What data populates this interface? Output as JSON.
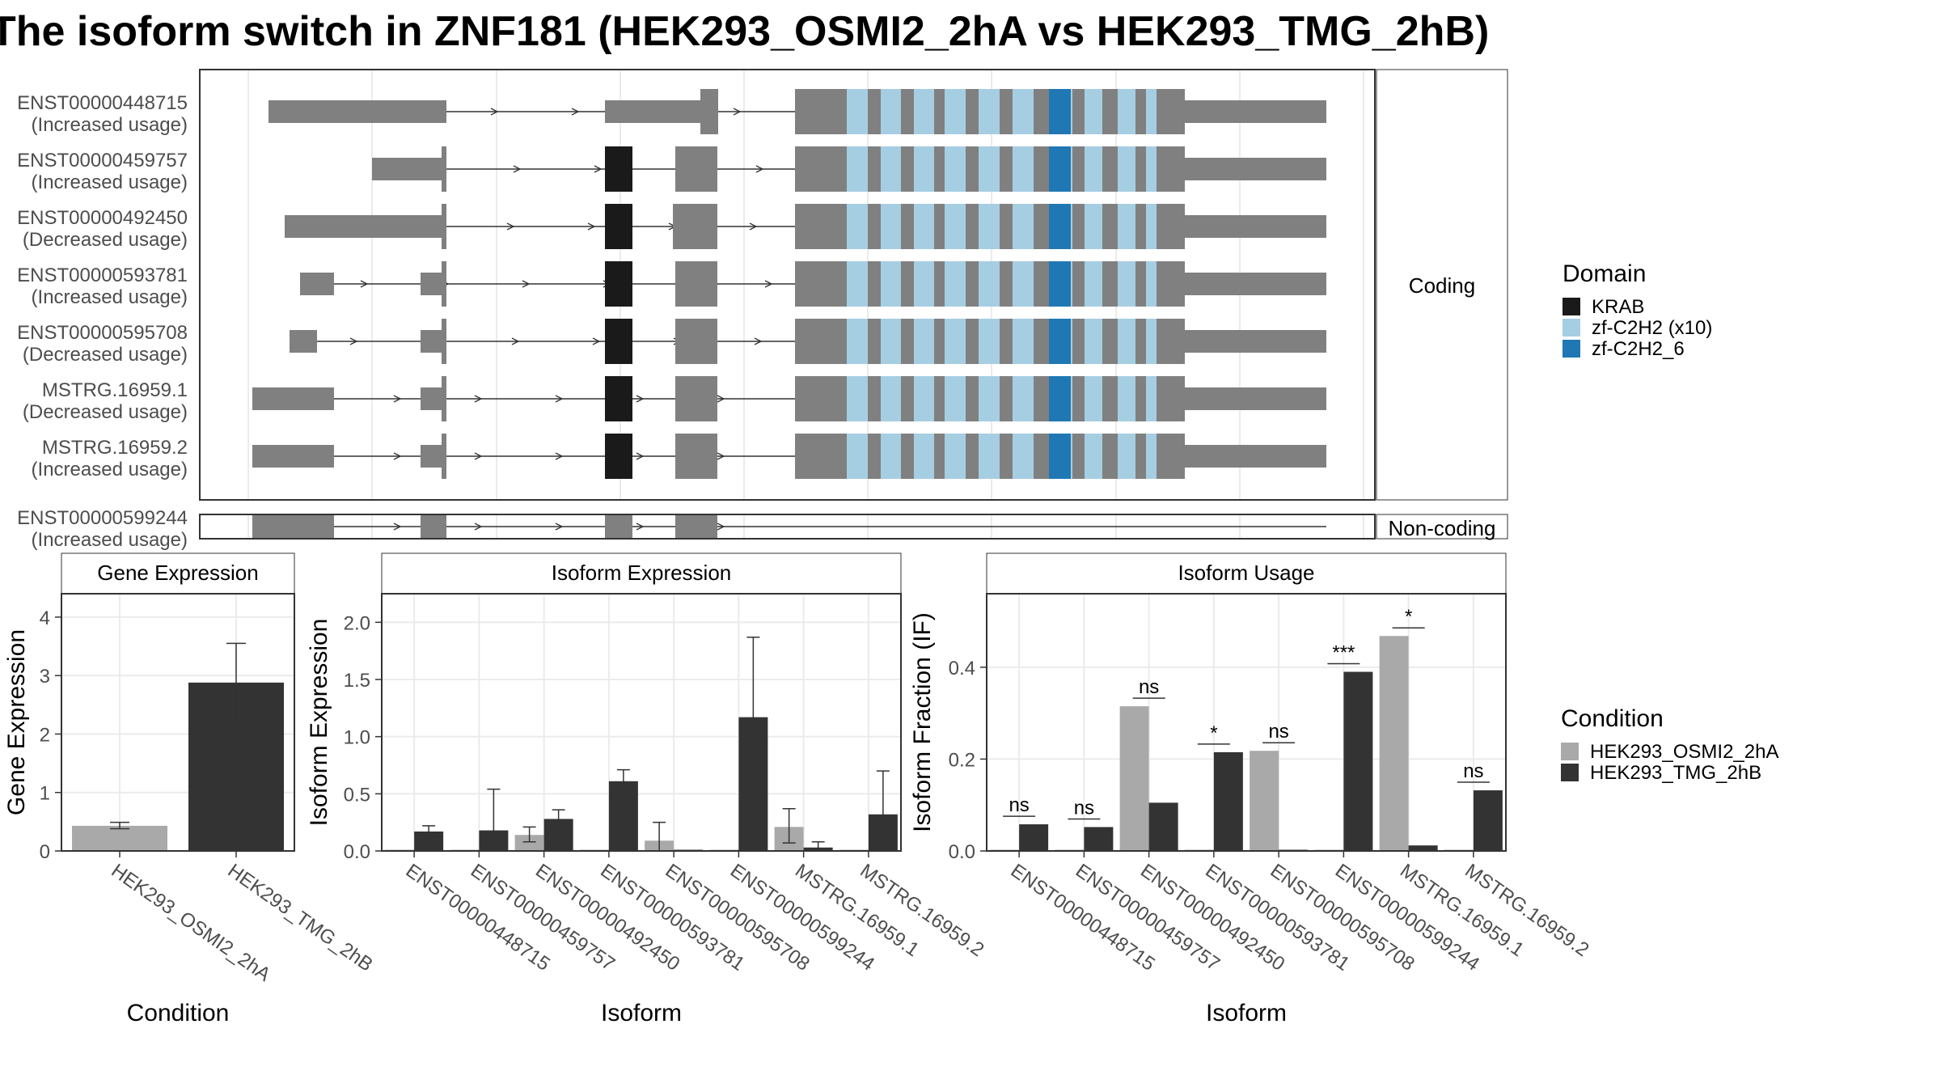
{
  "title": "The isoform switch in ZNF181 (HEK293_OSMI2_2hA vs HEK293_TMG_2hB)",
  "colors": {
    "exon": "#808080",
    "krab": "#1a1a1a",
    "zf_c2h2": "#a6cee3",
    "zf_c2h2_6": "#1f78b4",
    "cond_a": "#a9a9a9",
    "cond_b": "#333333"
  },
  "chart_data": [
    {
      "type": "gene-structure",
      "facets": [
        "Coding",
        "Non-coding"
      ],
      "transcripts": [
        {
          "id": "ENST00000448715",
          "usage": "(Increased usage)",
          "facet": "Coding",
          "coding_exons": [
            1,
            3,
            4,
            5
          ],
          "krab": false
        },
        {
          "id": "ENST00000459757",
          "usage": "(Increased usage)",
          "facet": "Coding",
          "coding_exons": [
            2,
            4,
            5
          ],
          "krab": true
        },
        {
          "id": "ENST00000492450",
          "usage": "(Decreased usage)",
          "facet": "Coding",
          "coding_exons": [
            2,
            4,
            5
          ],
          "krab": true
        },
        {
          "id": "ENST00000593781",
          "usage": "(Increased usage)",
          "facet": "Coding",
          "coding_exons": [
            2,
            4,
            5
          ],
          "krab": true
        },
        {
          "id": "ENST00000595708",
          "usage": "(Decreased usage)",
          "facet": "Coding",
          "coding_exons": [
            2,
            4,
            5
          ],
          "krab": true
        },
        {
          "id": "MSTRG.16959.1",
          "usage": "(Decreased usage)",
          "facet": "Coding",
          "coding_exons": [
            2,
            4,
            5
          ],
          "krab": true
        },
        {
          "id": "MSTRG.16959.2",
          "usage": "(Increased usage)",
          "facet": "Coding",
          "coding_exons": [
            2,
            4,
            5
          ],
          "krab": true
        },
        {
          "id": "ENST00000599244",
          "usage": "(Increased usage)",
          "facet": "Non-coding",
          "coding_exons": [],
          "krab": false
        }
      ],
      "legend": {
        "title": "Domain",
        "entries": [
          {
            "label": "KRAB",
            "color": "#1a1a1a"
          },
          {
            "label": "zf-C2H2 (x10)",
            "color": "#a6cee3"
          },
          {
            "label": "zf-C2H2_6",
            "color": "#1f78b4"
          }
        ]
      }
    },
    {
      "type": "bar",
      "panel": "Gene Expression",
      "xlabel": "Condition",
      "ylabel": "Gene Expression",
      "ylim": [
        0,
        4.4
      ],
      "yticks": [
        0,
        1,
        2,
        3,
        4
      ],
      "categories": [
        "HEK293_OSMI2_2hA",
        "HEK293_TMG_2hB"
      ],
      "values": [
        0.43,
        2.88
      ],
      "errors": [
        [
          0.38,
          0.49
        ],
        [
          2.22,
          3.55
        ]
      ]
    },
    {
      "type": "bar",
      "panel": "Isoform Expression",
      "xlabel": "Isoform",
      "ylabel": "Isoform Expression",
      "ylim": [
        0,
        2.25
      ],
      "yticks": [
        "0.0",
        "0.5",
        "1.0",
        "1.5",
        "2.0"
      ],
      "categories": [
        "ENST00000448715",
        "ENST00000459757",
        "ENST00000492450",
        "ENST00000593781",
        "ENST00000595708",
        "ENST00000599244",
        "MSTRG.16959.1",
        "MSTRG.16959.2"
      ],
      "series": [
        {
          "name": "HEK293_OSMI2_2hA",
          "values": [
            0.0,
            0.0,
            0.14,
            0.0,
            0.09,
            0.0,
            0.21,
            0.0
          ],
          "errors": [
            [
              0,
              0
            ],
            [
              0,
              0
            ],
            [
              0.08,
              0.21
            ],
            [
              0,
              0
            ],
            [
              0,
              0.25
            ],
            [
              0,
              0
            ],
            [
              0.07,
              0.37
            ],
            [
              0,
              0
            ]
          ]
        },
        {
          "name": "HEK293_TMG_2hB",
          "values": [
            0.17,
            0.18,
            0.28,
            0.61,
            0.0,
            1.17,
            0.03,
            0.32
          ],
          "errors": [
            [
              0.12,
              0.22
            ],
            [
              0,
              0.54
            ],
            [
              0.22,
              0.36
            ],
            [
              0.52,
              0.71
            ],
            [
              0,
              0
            ],
            [
              0.47,
              1.87
            ],
            [
              0,
              0.08
            ],
            [
              0,
              0.7
            ]
          ]
        }
      ]
    },
    {
      "type": "bar",
      "panel": "Isoform Usage",
      "xlabel": "Isoform",
      "ylabel": "Isoform Fraction (IF)",
      "ylim": [
        0,
        0.56
      ],
      "yticks": [
        "0.0",
        "0.2",
        "0.4"
      ],
      "categories": [
        "ENST00000448715",
        "ENST00000459757",
        "ENST00000492450",
        "ENST00000593781",
        "ENST00000595708",
        "ENST00000599244",
        "MSTRG.16959.1",
        "MSTRG.16959.2"
      ],
      "series": [
        {
          "name": "HEK293_OSMI2_2hA",
          "values": [
            0.0,
            0.0,
            0.315,
            0.0,
            0.218,
            0.0,
            0.468,
            0.0
          ]
        },
        {
          "name": "HEK293_TMG_2hB",
          "values": [
            0.058,
            0.052,
            0.105,
            0.215,
            0.0,
            0.39,
            0.012,
            0.132
          ]
        }
      ],
      "significance": [
        "ns",
        "ns",
        "ns",
        "*",
        "ns",
        "***",
        "*",
        "ns"
      ]
    }
  ],
  "condition_legend": {
    "title": "Condition",
    "entries": [
      {
        "label": "HEK293_OSMI2_2hA",
        "color": "#a9a9a9"
      },
      {
        "label": "HEK293_TMG_2hB",
        "color": "#333333"
      }
    ]
  }
}
